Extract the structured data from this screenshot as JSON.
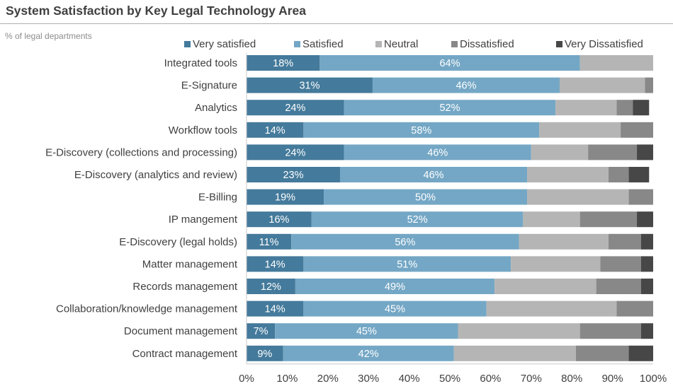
{
  "chart_data": {
    "type": "bar",
    "orientation": "horizontal",
    "stacked": true,
    "title": "System Satisfaction by Key Legal Technology Area",
    "subtitle": "% of legal departments",
    "xlabel": "",
    "ylabel": "",
    "xlim": [
      0,
      100
    ],
    "x_ticks": [
      "0%",
      "10%",
      "20%",
      "30%",
      "40%",
      "50%",
      "60%",
      "70%",
      "80%",
      "90%",
      "100%"
    ],
    "legend_position": "top",
    "grid": false,
    "categories": [
      "Integrated tools",
      "E-Signature",
      "Analytics",
      "Workflow tools",
      "E-Discovery (collections and processing)",
      "E-Discovery (analytics and review)",
      "E-Billing",
      "IP mangement",
      "E-Discovery (legal holds)",
      "Matter management",
      "Records management",
      "Collaboration/knowledge management",
      "Document management",
      "Contract management"
    ],
    "series": [
      {
        "name": "Very satisfied",
        "color": "#447a9b",
        "show_labels": true,
        "values": [
          18,
          31,
          24,
          14,
          24,
          23,
          19,
          16,
          11,
          14,
          12,
          14,
          7,
          9
        ]
      },
      {
        "name": "Satisfied",
        "color": "#74a7c5",
        "show_labels": true,
        "values": [
          64,
          46,
          52,
          58,
          46,
          46,
          50,
          52,
          56,
          51,
          49,
          45,
          45,
          42
        ]
      },
      {
        "name": "Neutral",
        "color": "#b5b5b5",
        "show_labels": false,
        "values": [
          18,
          21,
          15,
          20,
          14,
          20,
          25,
          14,
          22,
          22,
          25,
          32,
          30,
          30
        ]
      },
      {
        "name": "Dissatisfied",
        "color": "#888888",
        "show_labels": false,
        "values": [
          0,
          2,
          4,
          8,
          12,
          5,
          6,
          14,
          8,
          10,
          11,
          9,
          15,
          13
        ]
      },
      {
        "name": "Very Dissatisfied",
        "color": "#474747",
        "show_labels": false,
        "values": [
          0,
          0,
          4,
          0,
          4,
          5,
          0,
          4,
          4,
          3,
          3,
          0,
          3,
          7
        ]
      }
    ]
  }
}
